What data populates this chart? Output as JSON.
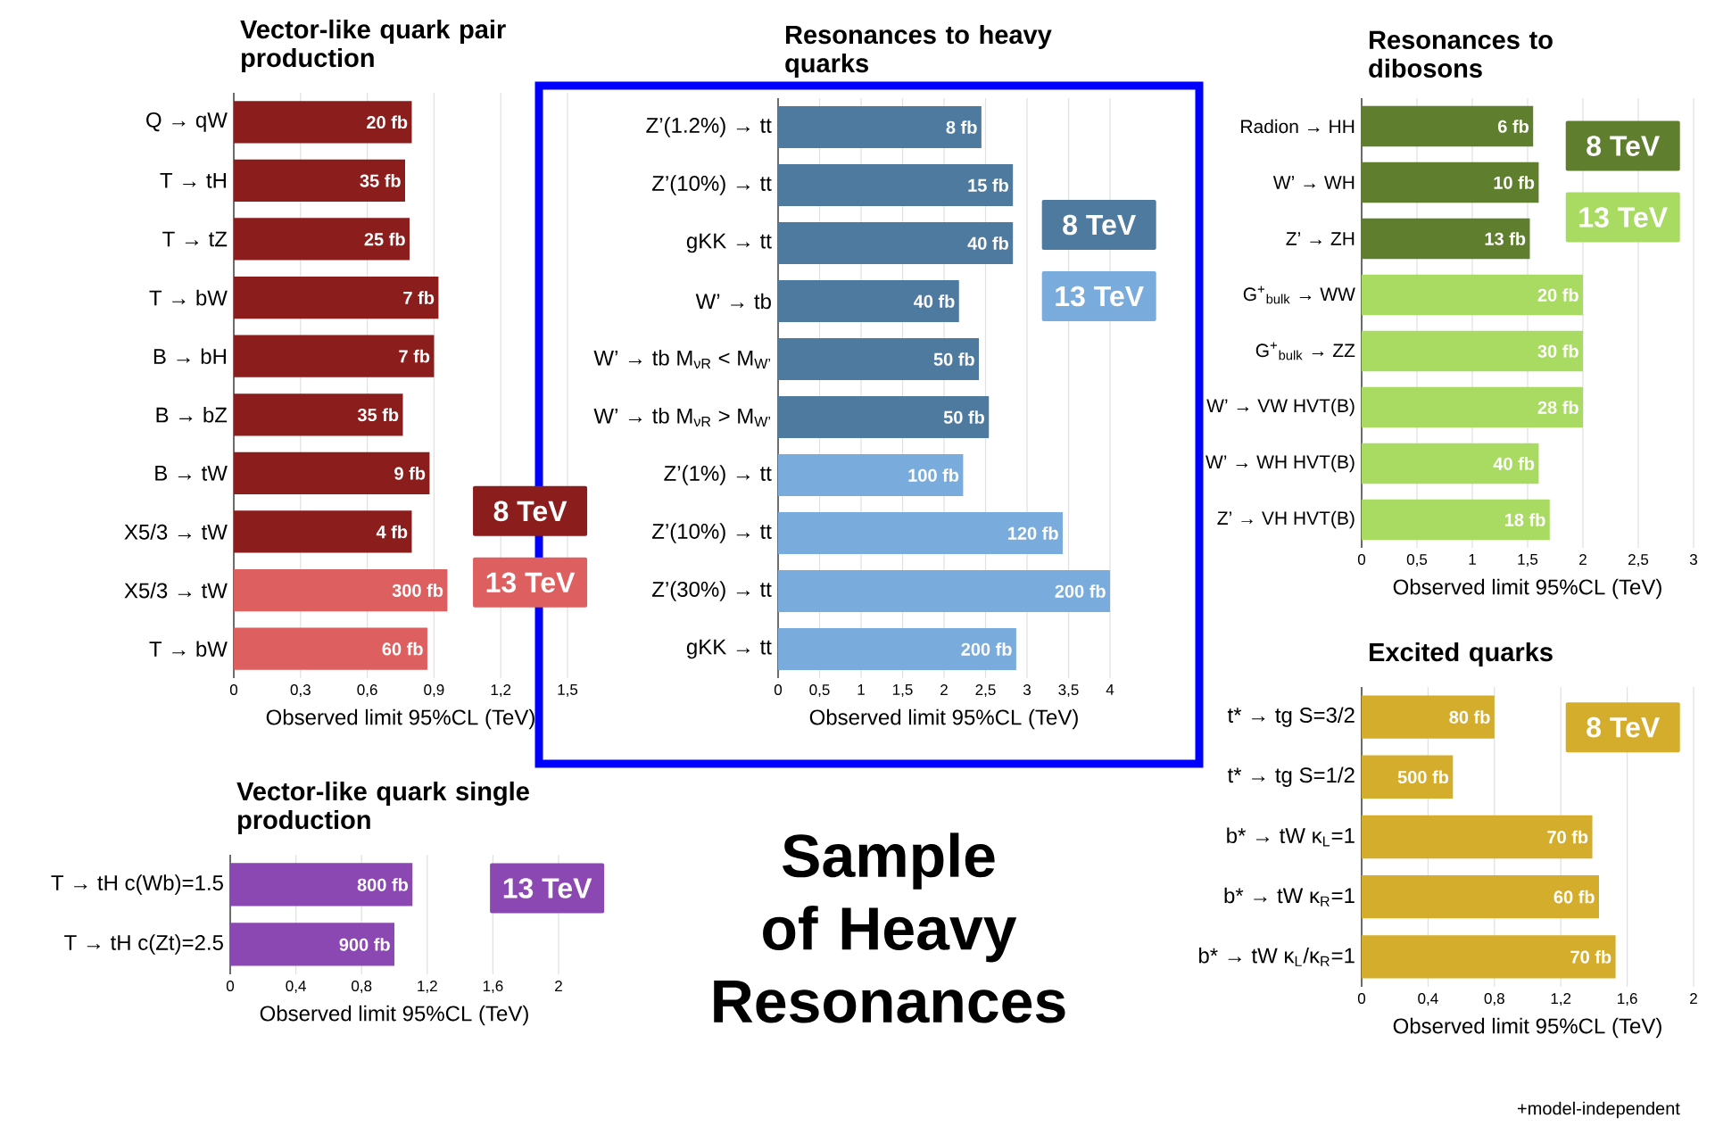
{
  "chart_data": [
    {
      "type": "bar",
      "orientation": "horizontal",
      "title": "Vector-like quark pair production",
      "xlabel": "Observed limit 95%CL (TeV)",
      "categories": [
        "Q → qW",
        "T → tH",
        "T → tZ",
        "T → bW",
        "B → bH",
        "B → bZ",
        "B → tW",
        "X5/3 → tW",
        "X5/3 → tW",
        "T → bW"
      ],
      "series": [
        {
          "name": "8 TeV",
          "color": "#8c1d1d",
          "values": [
            0.8,
            0.77,
            0.79,
            0.92,
            0.9,
            0.76,
            0.88,
            0.8,
            null,
            null
          ]
        },
        {
          "name": "13 TeV",
          "color": "#de5f5f",
          "values": [
            null,
            null,
            null,
            null,
            null,
            null,
            null,
            null,
            0.96,
            0.87
          ]
        }
      ],
      "xlim": [
        0,
        1.5
      ],
      "xticks": [
        0,
        {
          "value": 0.3,
          "label": "0,3"
        },
        {
          "value": 0.6,
          "label": "0,6"
        },
        {
          "value": 0.9,
          "label": "0,9"
        },
        {
          "value": 1.2,
          "label": "1,2"
        },
        {
          "value": 1.5,
          "label": "1,5"
        }
      ],
      "grid": "x",
      "legend": "bottom right",
      "annotations": [
        "20 fb",
        "35 fb",
        "25 fb",
        "7 fb",
        "7 fb",
        "35 fb",
        "9 fb",
        "4 fb",
        "300 fb",
        "60 fb"
      ]
    },
    {
      "type": "bar",
      "orientation": "horizontal",
      "title": "Resonances to heavy quarks",
      "xlabel": "Observed limit 95%CL (TeV)",
      "categories": [
        "Z’(1.2%) → tt",
        "Z’(10%) → tt",
        "gKK → tt",
        "W’ → tb",
        "W’ → tb  M$_{νR}$ < M$_{W’}$",
        "W’ → tb  M$_{νR}$ > M$_{W’}$",
        "Z’(1%) → tt",
        "Z’(10%) → tt",
        "Z’(30%) → tt",
        "gKK → tt"
      ],
      "series": [
        {
          "name": "8 TeV",
          "color": "#4f7aa0",
          "values": [
            2.45,
            2.83,
            2.83,
            2.18,
            2.42,
            2.54,
            null,
            null,
            null,
            null
          ]
        },
        {
          "name": "13 TeV",
          "color": "#79acdc",
          "values": [
            null,
            null,
            null,
            null,
            null,
            null,
            2.23,
            3.43,
            4.0,
            2.87
          ]
        }
      ],
      "xlim": [
        0,
        4
      ],
      "xticks": [
        0,
        {
          "value": 0.5,
          "label": "0,5"
        },
        1,
        {
          "value": 1.5,
          "label": "1,5"
        },
        2,
        {
          "value": 2.5,
          "label": "2,5"
        },
        3,
        {
          "value": 3.5,
          "label": "3,5"
        },
        4
      ],
      "grid": "x",
      "legend": "right",
      "annotations": [
        "8 fb",
        "15 fb",
        "40 fb",
        "40 fb",
        "50 fb",
        "50 fb",
        "100 fb",
        "120 fb",
        "200 fb",
        "200 fb"
      ]
    },
    {
      "type": "bar",
      "orientation": "horizontal",
      "title": "Resonances to dibosons",
      "xlabel": "Observed limit 95%CL (TeV)",
      "categories": [
        "Radion → HH",
        "W’ → WH",
        "Z’ → ZH",
        "G$^{+}$$_{bulk}$ → WW",
        "G$^{+}$$_{bulk}$ → ZZ",
        "W’ → VW  HVT(B)",
        "W’ → WH HVT(B)",
        "Z’ → VH HVT(B)"
      ],
      "series": [
        {
          "name": "8 TeV",
          "color": "#5f7f2f",
          "values": [
            1.55,
            1.6,
            1.52,
            null,
            null,
            null,
            null,
            null
          ]
        },
        {
          "name": "13 TeV",
          "color": "#a9da62",
          "values": [
            null,
            null,
            null,
            2.0,
            2.0,
            2.0,
            1.6,
            1.7
          ]
        }
      ],
      "xlim": [
        0,
        3
      ],
      "xticks": [
        0,
        {
          "value": 0.5,
          "label": "0,5"
        },
        1,
        {
          "value": 1.5,
          "label": "1,5"
        },
        2,
        {
          "value": 2.5,
          "label": "2,5"
        },
        3
      ],
      "grid": "x",
      "legend": "top right",
      "annotations": [
        "6 fb",
        "10 fb",
        "13 fb",
        "20 fb",
        "30 fb",
        "28 fb",
        "40 fb",
        "18 fb"
      ]
    },
    {
      "type": "bar",
      "orientation": "horizontal",
      "title": "Vector-like quark single production",
      "xlabel": "Observed limit 95%CL (TeV)",
      "categories": [
        "T → tH c(Wb)=1.5",
        "T → tH c(Zt)=2.5"
      ],
      "series": [
        {
          "name": "13 TeV",
          "color": "#8b47b2",
          "values": [
            1.11,
            1.0
          ]
        }
      ],
      "xlim": [
        0,
        2
      ],
      "xticks": [
        0,
        {
          "value": 0.4,
          "label": "0,4"
        },
        {
          "value": 0.8,
          "label": "0,8"
        },
        {
          "value": 1.2,
          "label": "1,2"
        },
        {
          "value": 1.6,
          "label": "1,6"
        },
        2
      ],
      "grid": "x",
      "legend": "right",
      "annotations": [
        "800 fb",
        "900 fb",
        "Sample of Heavy Resonances"
      ]
    },
    {
      "type": "bar",
      "orientation": "horizontal",
      "title": "Excited quarks",
      "xlabel": "Observed limit 95%CL (TeV)",
      "categories": [
        "t* → tg S=3/2",
        "t* → tg S=1/2",
        "b* → tW  κ$_{L}$=1",
        "b* → tW  κ$_{R}$=1",
        "b* → tW  κ$_{L}$/κ$_{R}$=1"
      ],
      "series": [
        {
          "name": "8 TeV",
          "color": "#d4ad2d",
          "values": [
            0.8,
            0.55,
            1.39,
            1.43,
            1.53
          ]
        }
      ],
      "xlim": [
        0,
        2
      ],
      "xticks": [
        0,
        {
          "value": 0.4,
          "label": "0,4"
        },
        {
          "value": 0.8,
          "label": "0,8"
        },
        {
          "value": 1.2,
          "label": "1,2"
        },
        {
          "value": 1.6,
          "label": "1,6"
        },
        2
      ],
      "grid": "x",
      "legend": "top right",
      "annotations": [
        "80 fb",
        "500 fb",
        "70 fb",
        "60 fb",
        "70 fb",
        "+model-independent"
      ]
    }
  ]
}
